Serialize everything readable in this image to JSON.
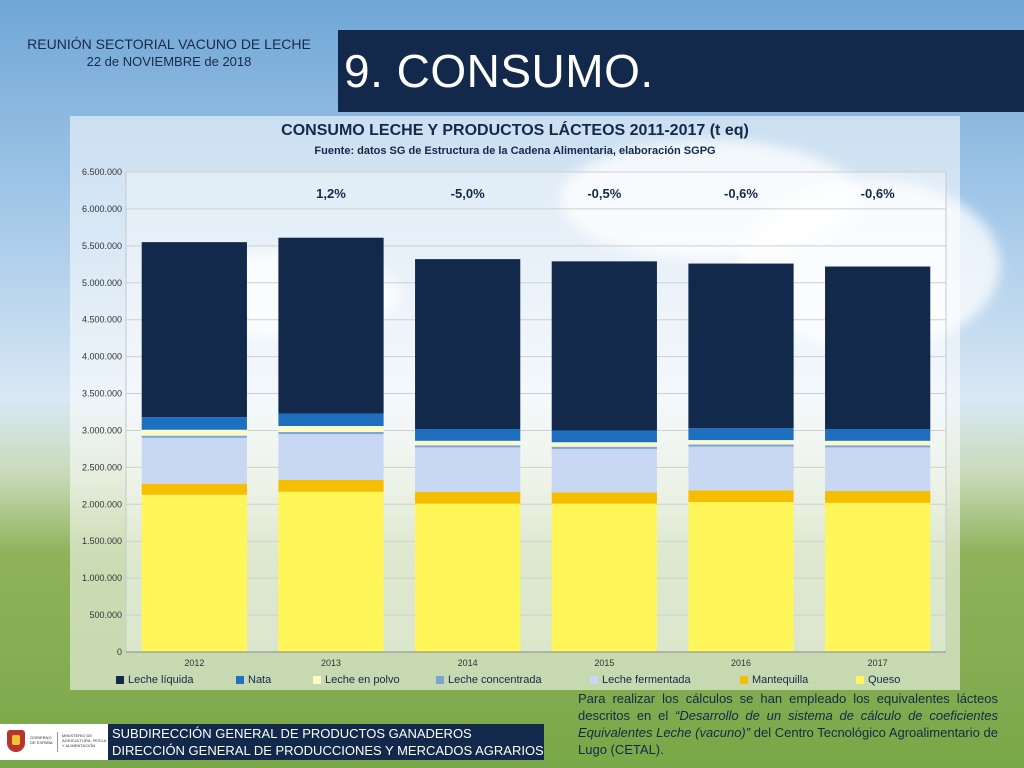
{
  "header": {
    "meeting": "REUNIÓN SECTORIAL VACUNO DE LECHE",
    "date": "22 de NOVIEMBRE de 2018"
  },
  "slide_title": "9. CONSUMO.",
  "chart_data": {
    "type": "bar",
    "stacked": true,
    "title": "CONSUMO LECHE Y PRODUCTOS LÁCTEOS 2011-2017 (t eq)",
    "subtitle": "Fuente: datos SG de Estructura de la Cadena Alimentaria, elaboración SGPG",
    "categories": [
      "2012",
      "2013",
      "2014",
      "2015",
      "2016",
      "2017"
    ],
    "ylim": [
      0,
      6500000
    ],
    "yticks": [
      0,
      500000,
      1000000,
      1500000,
      2000000,
      2500000,
      3000000,
      3500000,
      4000000,
      4500000,
      5000000,
      5500000,
      6000000,
      6500000
    ],
    "ytick_labels": [
      "0",
      "500.000",
      "1.000.000",
      "1.500.000",
      "2.000.000",
      "2.500.000",
      "3.000.000",
      "3.500.000",
      "4.000.000",
      "4.500.000",
      "5.000.000",
      "5.500.000",
      "6.000.000",
      "6.500.000"
    ],
    "grid": true,
    "legend_position": "bottom",
    "annotations": [
      "",
      "1,2%",
      "-5,0%",
      "-0,5%",
      "-0,6%",
      "-0,6%"
    ],
    "series": [
      {
        "name": "Queso",
        "color": "#fff65a",
        "values": [
          2130000,
          2170000,
          2010000,
          2010000,
          2030000,
          2020000
        ]
      },
      {
        "name": "Mantequilla",
        "color": "#f6be00",
        "values": [
          150000,
          160000,
          160000,
          150000,
          160000,
          160000
        ]
      },
      {
        "name": "Leche fermentada",
        "color": "#c9d8f2",
        "values": [
          620000,
          620000,
          600000,
          590000,
          590000,
          590000
        ]
      },
      {
        "name": "Leche concentrada",
        "color": "#7fa6d8",
        "values": [
          30000,
          30000,
          30000,
          30000,
          30000,
          30000
        ]
      },
      {
        "name": "Leche en polvo",
        "color": "#fbfbc8",
        "values": [
          80000,
          80000,
          60000,
          60000,
          60000,
          60000
        ]
      },
      {
        "name": "Nata",
        "color": "#1e6fc0",
        "values": [
          170000,
          170000,
          160000,
          160000,
          160000,
          160000
        ]
      },
      {
        "name": "Leche líquida",
        "color": "#13294b",
        "values": [
          2370000,
          2380000,
          2300000,
          2290000,
          2230000,
          2200000
        ]
      }
    ],
    "legend_order": [
      "Leche líquida",
      "Nata",
      "Leche en polvo",
      "Leche concentrada",
      "Leche fermentada",
      "Mantequilla",
      "Queso"
    ]
  },
  "note": {
    "part1": "Para realizar los cálculos se han empleado los equivalentes lácteos descritos en el ",
    "italic": "“Desarrollo de un sistema de cálculo de coeficientes Equivalentes Leche (vacuno)”",
    "part2": " del Centro Tecnológico Agroalimentario de Lugo (CETAL)."
  },
  "footer": {
    "line1": "SUBDIRECCIÓN GENERAL DE PRODUCTOS GANADEROS",
    "line2": "DIRECCIÓN GENERAL DE PRODUCCIONES Y MERCADOS AGRARIOS",
    "logo_gov": "GOBIERNO DE ESPAÑA",
    "logo_ministry": "MINISTERIO DE AGRICULTURA, PESCA Y ALIMENTACIÓN"
  }
}
